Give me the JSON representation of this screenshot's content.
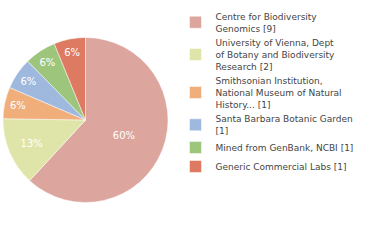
{
  "chart_data": {
    "type": "pie",
    "categories": [
      "Centre for Biodiversity Genomics [9]",
      "University of Vienna, Dept of Botany and Biodiversity Research [2]",
      "Smithsonian Institution, National Museum of Natural History... [1]",
      "Santa Barbara Botanic Garden [1]",
      "Mined from GenBank, NCBI [1]",
      "Generic Commercial Labs [1]"
    ],
    "values": [
      60,
      13,
      6,
      6,
      6,
      6
    ],
    "value_labels": [
      "60%",
      "13%",
      "6%",
      "6%",
      "6%",
      "6%"
    ],
    "colors": [
      "#dca59d",
      "#dfe5a8",
      "#efae7a",
      "#9fb9de",
      "#9dc57c",
      "#df7a62"
    ],
    "data_labels": true,
    "legend": "right"
  }
}
